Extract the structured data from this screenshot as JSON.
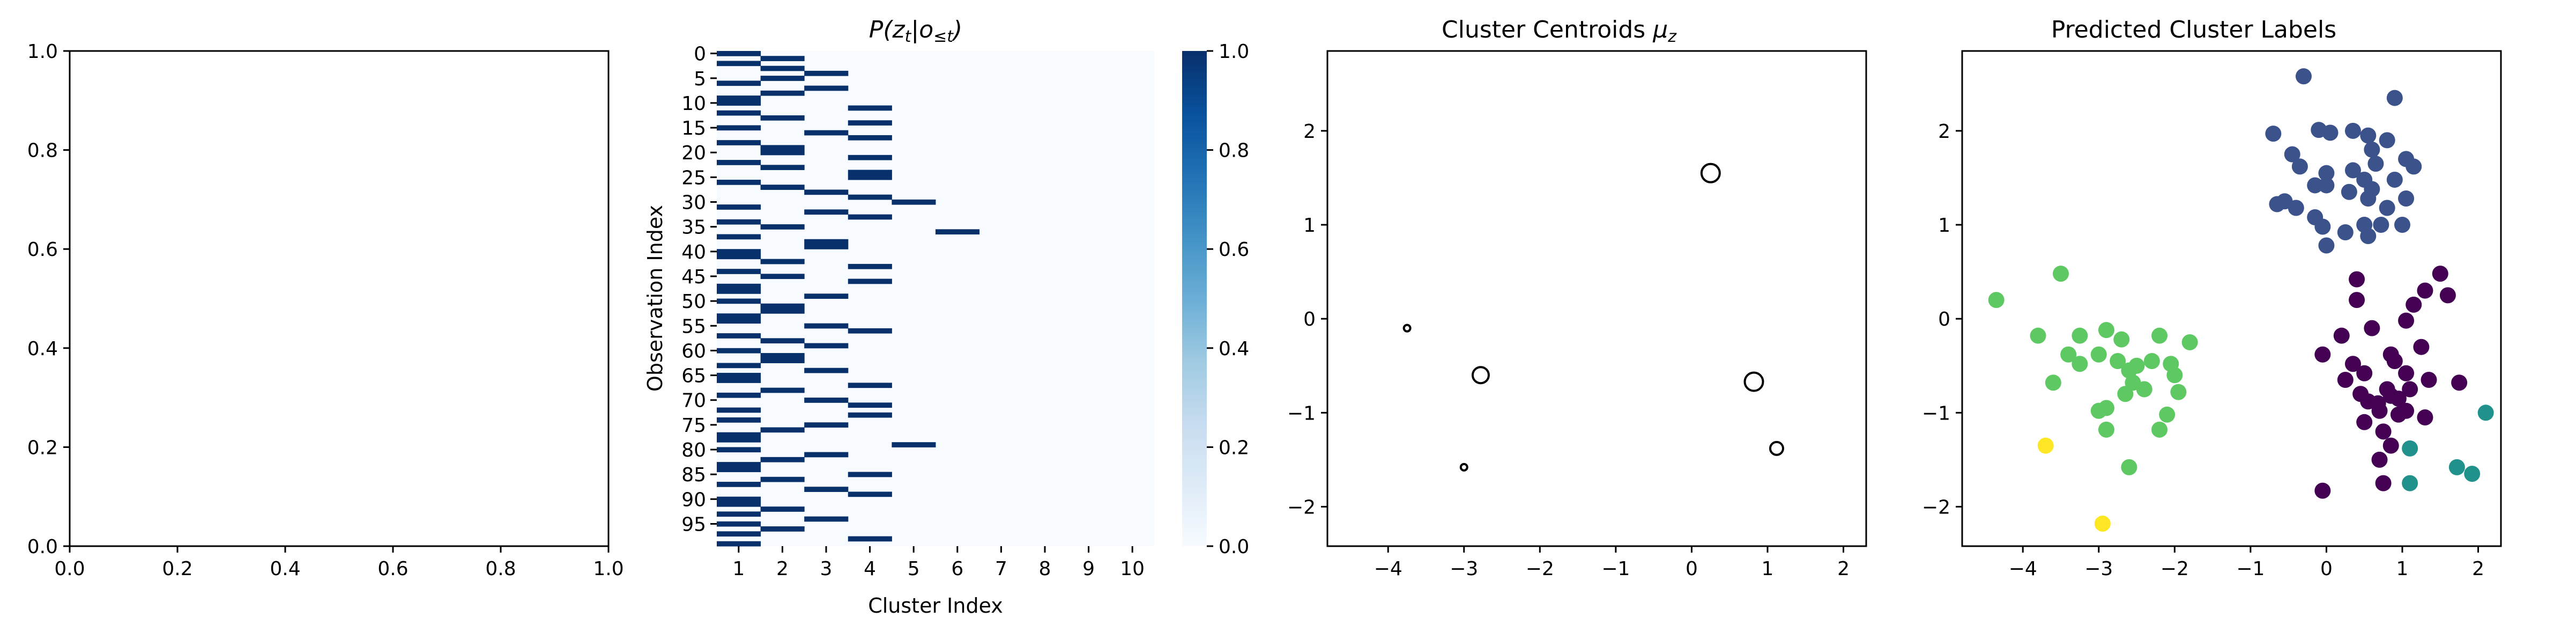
{
  "chart_data": [
    {
      "type": "empty",
      "title": "",
      "xlim": [
        0,
        1
      ],
      "ylim": [
        0,
        1
      ],
      "xticks": [
        "0.0",
        "0.2",
        "0.4",
        "0.6",
        "0.8",
        "1.0"
      ],
      "yticks": [
        "0.0",
        "0.2",
        "0.4",
        "0.6",
        "0.8",
        "1.0"
      ]
    },
    {
      "type": "heatmap",
      "title": "P(z_t | o_≤t)",
      "title_parts": {
        "p": "P(",
        "z": "z",
        "t1": "t",
        "bar": "|",
        "o": "o",
        "le": "≤",
        "t2": "t",
        "close": ")"
      },
      "xlabel": "Cluster Index",
      "ylabel": "Observation Index",
      "x_ticks": [
        "1",
        "2",
        "3",
        "4",
        "5",
        "6",
        "7",
        "8",
        "9",
        "10"
      ],
      "y_ticks": [
        "0",
        "5",
        "10",
        "15",
        "20",
        "25",
        "30",
        "35",
        "40",
        "45",
        "50",
        "55",
        "60",
        "65",
        "70",
        "75",
        "80",
        "85",
        "90",
        "95"
      ],
      "n_rows": 100,
      "n_cols": 10,
      "colorbar": {
        "ticks": [
          "0.0",
          "0.2",
          "0.4",
          "0.6",
          "0.8",
          "1.0"
        ],
        "range": [
          0,
          1
        ],
        "colormap": "Blues"
      },
      "assignments": [
        1,
        2,
        1,
        2,
        3,
        2,
        1,
        3,
        2,
        1,
        1,
        4,
        1,
        2,
        4,
        1,
        3,
        4,
        1,
        2,
        2,
        4,
        1,
        2,
        4,
        4,
        1,
        2,
        3,
        4,
        5,
        1,
        3,
        4,
        1,
        2,
        6,
        1,
        3,
        3,
        1,
        1,
        2,
        4,
        1,
        2,
        4,
        1,
        1,
        3,
        1,
        2,
        2,
        1,
        1,
        3,
        4,
        1,
        2,
        3,
        1,
        2,
        2,
        1,
        3,
        1,
        1,
        4,
        2,
        1,
        3,
        4,
        1,
        4,
        1,
        3,
        2,
        1,
        1,
        5,
        1,
        3,
        2,
        1,
        1,
        4,
        2,
        1,
        3,
        4,
        1,
        1,
        2,
        1,
        3,
        1,
        2,
        1,
        4,
        1
      ]
    },
    {
      "type": "scatter",
      "title": "Cluster Centroids μz",
      "title_parts": {
        "main": "Cluster Centroids ",
        "mu": "μ",
        "sub": "z"
      },
      "xlim": [
        -4.8,
        2.3
      ],
      "ylim": [
        -2.42,
        2.85
      ],
      "xticks": [
        "−4",
        "−3",
        "−2",
        "−1",
        "0",
        "1",
        "2"
      ],
      "yticks": [
        "−2",
        "−1",
        "0",
        "1",
        "2"
      ],
      "marker": "open-circle",
      "points": [
        {
          "x": 0.25,
          "y": 1.55,
          "size": 17
        },
        {
          "x": -3.75,
          "y": -0.1,
          "size": 6
        },
        {
          "x": -2.78,
          "y": -0.6,
          "size": 15
        },
        {
          "x": 0.82,
          "y": -0.67,
          "size": 17
        },
        {
          "x": -3.0,
          "y": -1.58,
          "size": 6
        },
        {
          "x": 1.12,
          "y": -1.38,
          "size": 12
        }
      ]
    },
    {
      "type": "scatter",
      "title": "Predicted Cluster Labels",
      "xlim": [
        -4.8,
        2.3
      ],
      "ylim": [
        -2.42,
        2.85
      ],
      "xticks": [
        "−4",
        "−3",
        "−2",
        "−1",
        "0",
        "1",
        "2"
      ],
      "yticks": [
        "−2",
        "−1",
        "0",
        "1",
        "2"
      ],
      "colors": {
        "c0": "#440154",
        "c1": "#3b528b",
        "c2": "#21918c",
        "c3": "#5ec962",
        "c4": "#fde725"
      },
      "series": [
        {
          "color_key": "c1",
          "points": [
            [
              -0.3,
              2.58
            ],
            [
              0.9,
              2.35
            ],
            [
              -0.7,
              1.97
            ],
            [
              -0.1,
              2.01
            ],
            [
              0.05,
              1.98
            ],
            [
              0.35,
              2.0
            ],
            [
              0.55,
              1.95
            ],
            [
              0.8,
              1.9
            ],
            [
              -0.45,
              1.75
            ],
            [
              0.6,
              1.8
            ],
            [
              1.05,
              1.7
            ],
            [
              1.15,
              1.62
            ],
            [
              -0.35,
              1.62
            ],
            [
              0.0,
              1.55
            ],
            [
              0.35,
              1.58
            ],
            [
              0.65,
              1.65
            ],
            [
              -0.15,
              1.42
            ],
            [
              0.0,
              1.42
            ],
            [
              0.3,
              1.35
            ],
            [
              0.5,
              1.48
            ],
            [
              0.6,
              1.38
            ],
            [
              0.55,
              1.28
            ],
            [
              0.9,
              1.48
            ],
            [
              1.05,
              1.28
            ],
            [
              -0.55,
              1.25
            ],
            [
              -0.4,
              1.18
            ],
            [
              -0.15,
              1.08
            ],
            [
              -0.05,
              0.98
            ],
            [
              0.25,
              0.92
            ],
            [
              0.5,
              1.0
            ],
            [
              0.72,
              1.0
            ],
            [
              1.0,
              1.0
            ],
            [
              0.55,
              0.88
            ],
            [
              0.0,
              0.78
            ],
            [
              0.8,
              1.18
            ],
            [
              -0.65,
              1.22
            ]
          ]
        },
        {
          "color_key": "c0",
          "points": [
            [
              0.4,
              0.42
            ],
            [
              1.5,
              0.48
            ],
            [
              1.3,
              0.3
            ],
            [
              0.4,
              0.2
            ],
            [
              1.6,
              0.25
            ],
            [
              1.15,
              0.15
            ],
            [
              0.2,
              -0.18
            ],
            [
              0.6,
              -0.1
            ],
            [
              1.05,
              -0.02
            ],
            [
              -0.05,
              -0.38
            ],
            [
              0.85,
              -0.38
            ],
            [
              1.25,
              -0.3
            ],
            [
              0.35,
              -0.48
            ],
            [
              0.9,
              -0.45
            ],
            [
              0.5,
              -0.58
            ],
            [
              1.05,
              -0.58
            ],
            [
              0.25,
              -0.65
            ],
            [
              1.35,
              -0.65
            ],
            [
              1.75,
              -0.68
            ],
            [
              0.8,
              -0.75
            ],
            [
              0.45,
              -0.8
            ],
            [
              0.55,
              -0.88
            ],
            [
              0.68,
              -0.9
            ],
            [
              0.85,
              -0.82
            ],
            [
              0.95,
              -0.85
            ],
            [
              1.1,
              -0.75
            ],
            [
              0.7,
              -0.98
            ],
            [
              0.95,
              -1.02
            ],
            [
              1.05,
              -0.98
            ],
            [
              0.5,
              -1.1
            ],
            [
              1.3,
              -1.05
            ],
            [
              0.75,
              -1.2
            ],
            [
              0.85,
              -1.35
            ],
            [
              0.7,
              -1.5
            ],
            [
              0.75,
              -1.75
            ],
            [
              -0.05,
              -1.83
            ]
          ]
        },
        {
          "color_key": "c3",
          "points": [
            [
              -4.35,
              0.2
            ],
            [
              -3.5,
              0.48
            ],
            [
              -3.8,
              -0.18
            ],
            [
              -3.25,
              -0.18
            ],
            [
              -2.9,
              -0.12
            ],
            [
              -2.2,
              -0.18
            ],
            [
              -1.8,
              -0.25
            ],
            [
              -3.4,
              -0.38
            ],
            [
              -3.25,
              -0.48
            ],
            [
              -3.0,
              -0.38
            ],
            [
              -2.7,
              -0.22
            ],
            [
              -2.75,
              -0.45
            ],
            [
              -2.6,
              -0.55
            ],
            [
              -2.5,
              -0.5
            ],
            [
              -2.3,
              -0.45
            ],
            [
              -2.05,
              -0.48
            ],
            [
              -3.6,
              -0.68
            ],
            [
              -2.55,
              -0.68
            ],
            [
              -2.65,
              -0.8
            ],
            [
              -2.4,
              -0.75
            ],
            [
              -2.0,
              -0.6
            ],
            [
              -1.95,
              -0.78
            ],
            [
              -3.0,
              -0.98
            ],
            [
              -2.9,
              -0.95
            ],
            [
              -2.1,
              -1.02
            ],
            [
              -2.9,
              -1.18
            ],
            [
              -2.2,
              -1.18
            ],
            [
              -2.6,
              -1.58
            ]
          ]
        },
        {
          "color_key": "c2",
          "points": [
            [
              2.1,
              -1.0
            ],
            [
              1.1,
              -1.38
            ],
            [
              1.72,
              -1.58
            ],
            [
              1.92,
              -1.65
            ],
            [
              1.1,
              -1.75
            ]
          ]
        },
        {
          "color_key": "c4",
          "points": [
            [
              -3.7,
              -1.35
            ],
            [
              -2.95,
              -2.18
            ]
          ]
        }
      ]
    }
  ]
}
